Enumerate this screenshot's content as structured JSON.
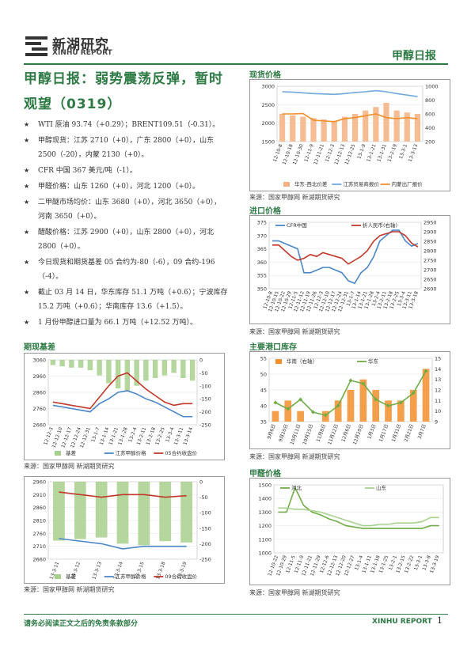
{
  "header": {
    "logo_cn": "新湖研究",
    "logo_en": "XINHU REPORT",
    "report_name": "甲醇日报"
  },
  "title": "甲醇日报：弱势震荡反弹，暂时观望（0319）",
  "bullets": [
    "WTI 原油 93.74（+0.29）；BRENT109.51（-0.31）。",
    "甲醇现货：江苏 2710（+0），广东 2800（+0），山东 2500（-20），内蒙 2130（+0）。",
    "CFR 中国 367 美元/吨（-1）。",
    "甲醛价格：山东 1260（+0），河北 1200（+0）。",
    "二甲醚市场均价：山东 3680（+0），河北 3650（+0），河南 3650（+0）。",
    "醋酸价格：江苏 2900（+0），山东 2800（+0），河北 2800（+0）。",
    "今日现货和期货基差 05 合约为-80（-6），09 合约-196（-4）。",
    "截止 03 月 14 日，华东库存 51.1 万吨（+0.6）；宁波库存 15.2 万吨（+0.6）；华南库存 13.6（+1.5）。",
    "1 月份甲醇进口量为 66.1 万吨（+12.52 万吨）。"
  ],
  "sections": {
    "spot": "现货价格",
    "import": "进口价格",
    "basis": "期现基差",
    "inventory": "主要港口库存",
    "formaldehyde": "甲醛价格"
  },
  "source": "来源：国家甲醇网  新湖期货研究",
  "footer": {
    "disclaimer": "请务必阅读正文之后的免责条款部分",
    "brand": "XINHU REPORT",
    "page": "1"
  },
  "colors": {
    "brand": "#2d7a45"
  },
  "chart_data": [
    {
      "id": "spot",
      "type": "line",
      "x": [
        "12-10-8",
        "12-10-18",
        "12-10-30",
        "12-11-9",
        "12-11-21",
        "12-12-3",
        "12-12-13",
        "12-12-25",
        "13-1-9",
        "13-1-21",
        "13-1-31",
        "13-2-19",
        "13-3-1",
        "13-3-13"
      ],
      "ylim": [
        1500,
        3000
      ],
      "yticks": [
        1500,
        2000,
        2500,
        3000
      ],
      "y2lim": [
        200,
        1000
      ],
      "y2ticks": [
        200,
        400,
        600,
        800,
        1000
      ],
      "series": [
        {
          "name": "华东-西北价差",
          "kind": "bar",
          "axis": "right",
          "color": "#f4b183",
          "values": [
            600,
            580,
            560,
            540,
            520,
            500,
            560,
            600,
            650,
            700,
            760,
            650,
            620,
            600
          ]
        },
        {
          "name": "江苏贸易商报价",
          "axis": "left",
          "color": "#6fa8dc",
          "values": [
            2850,
            2840,
            2820,
            2800,
            2790,
            2780,
            2800,
            2830,
            2850,
            2880,
            2850,
            2800,
            2760,
            2720
          ]
        },
        {
          "name": "内蒙出厂报价",
          "axis": "left",
          "color": "#f28e2b",
          "values": [
            2250,
            2250,
            2260,
            2080,
            2060,
            2040,
            2120,
            2150,
            2200,
            2250,
            2150,
            2120,
            2150,
            2120
          ]
        }
      ]
    },
    {
      "id": "import",
      "type": "line",
      "x": [
        "12-10-8",
        "12-10-15",
        "12-10-22",
        "12-10-29",
        "12-11-5",
        "12-11-12",
        "12-11-19",
        "12-11-26",
        "12-12-3",
        "12-12-10",
        "12-12-17",
        "12-12-24",
        "12-12-31",
        "13-1-7",
        "13-1-14",
        "13-1-21",
        "13-1-28",
        "13-2-4",
        "13-2-11",
        "13-2-18",
        "13-2-25",
        "13-3-4",
        "13-3-11",
        "13-3-18"
      ],
      "ylim": [
        350,
        375
      ],
      "yticks": [
        350,
        355,
        360,
        365,
        370,
        375
      ],
      "y2lim": [
        2600,
        2950
      ],
      "y2ticks": [
        2600,
        2650,
        2700,
        2750,
        2800,
        2850,
        2900,
        2950
      ],
      "series": [
        {
          "name": "CFR中国",
          "axis": "left",
          "color": "#4a86c8",
          "values": [
            368,
            368,
            367,
            366,
            365,
            356,
            356,
            357,
            358,
            358,
            357,
            356,
            353,
            352,
            356,
            358,
            362,
            368,
            370,
            372,
            372,
            368,
            366,
            367
          ]
        },
        {
          "name": "折人民币(右轴)",
          "axis": "right",
          "color": "#c0392b",
          "values": [
            2830,
            2830,
            2800,
            2770,
            2750,
            2760,
            2780,
            2770,
            2790,
            2780,
            2770,
            2760,
            2730,
            2750,
            2770,
            2800,
            2850,
            2880,
            2890,
            2900,
            2900,
            2880,
            2840,
            2820
          ]
        }
      ]
    },
    {
      "id": "basis",
      "type": "line",
      "x": [
        "12-12-3",
        "12-12-10",
        "12-12-17",
        "12-12-24",
        "12-12-31",
        "13-1-7",
        "13-1-14",
        "13-1-21",
        "13-1-28",
        "13-2-4",
        "13-2-11",
        "13-2-18",
        "13-2-25",
        "13-3-4",
        "13-3-11",
        "13-3-14"
      ],
      "ylim": [
        2660,
        3060
      ],
      "yticks": [
        2660,
        2760,
        2860,
        2960,
        3060
      ],
      "y2lim": [
        -250,
        0
      ],
      "y2ticks": [
        -250,
        -200,
        -150,
        -100,
        -50,
        0
      ],
      "series": [
        {
          "name": "基差",
          "kind": "bar",
          "axis": "right",
          "color": "#a8d08d",
          "values": [
            -20,
            -25,
            -30,
            -30,
            -40,
            -60,
            -90,
            -110,
            -120,
            -100,
            -80,
            -70,
            -60,
            -50,
            -70,
            -80
          ]
        },
        {
          "name": "江苏甲醇价格",
          "axis": "left",
          "color": "#4a86c8",
          "values": [
            2780,
            2770,
            2760,
            2750,
            2740,
            2790,
            2820,
            2860,
            2870,
            2850,
            2820,
            2800,
            2770,
            2740,
            2710,
            2710
          ]
        },
        {
          "name": "05合约收盘价",
          "axis": "left",
          "color": "#c0392b",
          "values": [
            2800,
            2790,
            2780,
            2770,
            2760,
            2830,
            2900,
            2960,
            2980,
            2930,
            2880,
            2840,
            2800,
            2780,
            2790,
            2790
          ]
        }
      ]
    },
    {
      "id": "basis09",
      "type": "line",
      "x": [
        "13-3-11",
        "13-3-12",
        "13-3-13",
        "13-3-14",
        "13-3-15",
        "13-3-18",
        "13-3-19"
      ],
      "ylim": [
        2660,
        2960
      ],
      "yticks": [
        2660,
        2710,
        2760,
        2810,
        2860,
        2910,
        2960
      ],
      "y2lim": [
        -250,
        0
      ],
      "y2ticks": [
        -250,
        -200,
        -150,
        -100,
        -50,
        0
      ],
      "series": [
        {
          "name": "基差",
          "kind": "bar",
          "axis": "right",
          "color": "#a8d08d",
          "values": [
            -190,
            -185,
            -180,
            -200,
            -205,
            -192,
            -196
          ]
        },
        {
          "name": "江苏甲醇价格",
          "axis": "left",
          "color": "#4a86c8",
          "values": [
            2740,
            2730,
            2720,
            2700,
            2710,
            2710,
            2710
          ]
        },
        {
          "name": "09合约收盘价",
          "axis": "left",
          "color": "#c0392b",
          "values": [
            2920,
            2910,
            2900,
            2910,
            2910,
            2900,
            2906
          ]
        }
      ]
    },
    {
      "id": "inventory",
      "type": "line",
      "x": [
        "9月6日",
        "9月20日",
        "10月11日",
        "10月25日",
        "11月8日",
        "11月22日",
        "12月6日",
        "12月20日",
        "1月3日",
        "1月17日",
        "1月31日",
        "2月21日",
        "3月7日"
      ],
      "ylim": [
        35,
        55
      ],
      "yticks": [
        35,
        40,
        45,
        50,
        55
      ],
      "y2lim": [
        9,
        15
      ],
      "y2ticks": [
        9,
        10,
        11,
        12,
        13,
        14,
        15
      ],
      "series": [
        {
          "name": "华南（右轴）",
          "kind": "bar",
          "axis": "right",
          "color": "#f28e2b",
          "values": [
            10,
            11,
            10,
            9,
            10,
            11,
            12,
            13,
            12,
            11,
            11,
            12,
            14
          ]
        },
        {
          "name": "华东",
          "axis": "left",
          "color": "#70ad47",
          "values": [
            41,
            39,
            42,
            38,
            37,
            40,
            48,
            47,
            42,
            40,
            41,
            44,
            51
          ]
        }
      ]
    },
    {
      "id": "formaldehyde",
      "type": "line",
      "x": [
        "12-10-22",
        "12-10-29",
        "12-11-5",
        "12-11-9",
        "12-11-21",
        "12-11-29",
        "12-12-6",
        "12-12-13",
        "12-12-20",
        "12-12-27",
        "13-1-4",
        "13-1-11",
        "13-1-18",
        "13-1-25",
        "13-2-1",
        "13-2-15",
        "13-2-22",
        "13-3-1",
        "13-3-8",
        "13-3-19"
      ],
      "ylim": [
        1000,
        1500
      ],
      "yticks": [
        1000,
        1100,
        1200,
        1300,
        1400,
        1500
      ],
      "series": [
        {
          "name": "河北",
          "axis": "left",
          "color": "#70ad47",
          "values": [
            1300,
            1300,
            1480,
            1350,
            1300,
            1280,
            1250,
            1230,
            1200,
            1190,
            1180,
            1180,
            1180,
            1180,
            1180,
            1180,
            1180,
            1180,
            1200,
            1200
          ]
        },
        {
          "name": "山东",
          "axis": "left",
          "color": "#a9d18e",
          "values": [
            1330,
            1330,
            1320,
            1320,
            1310,
            1300,
            1280,
            1260,
            1240,
            1220,
            1200,
            1200,
            1210,
            1210,
            1220,
            1220,
            1220,
            1230,
            1260,
            1260
          ]
        }
      ]
    }
  ]
}
